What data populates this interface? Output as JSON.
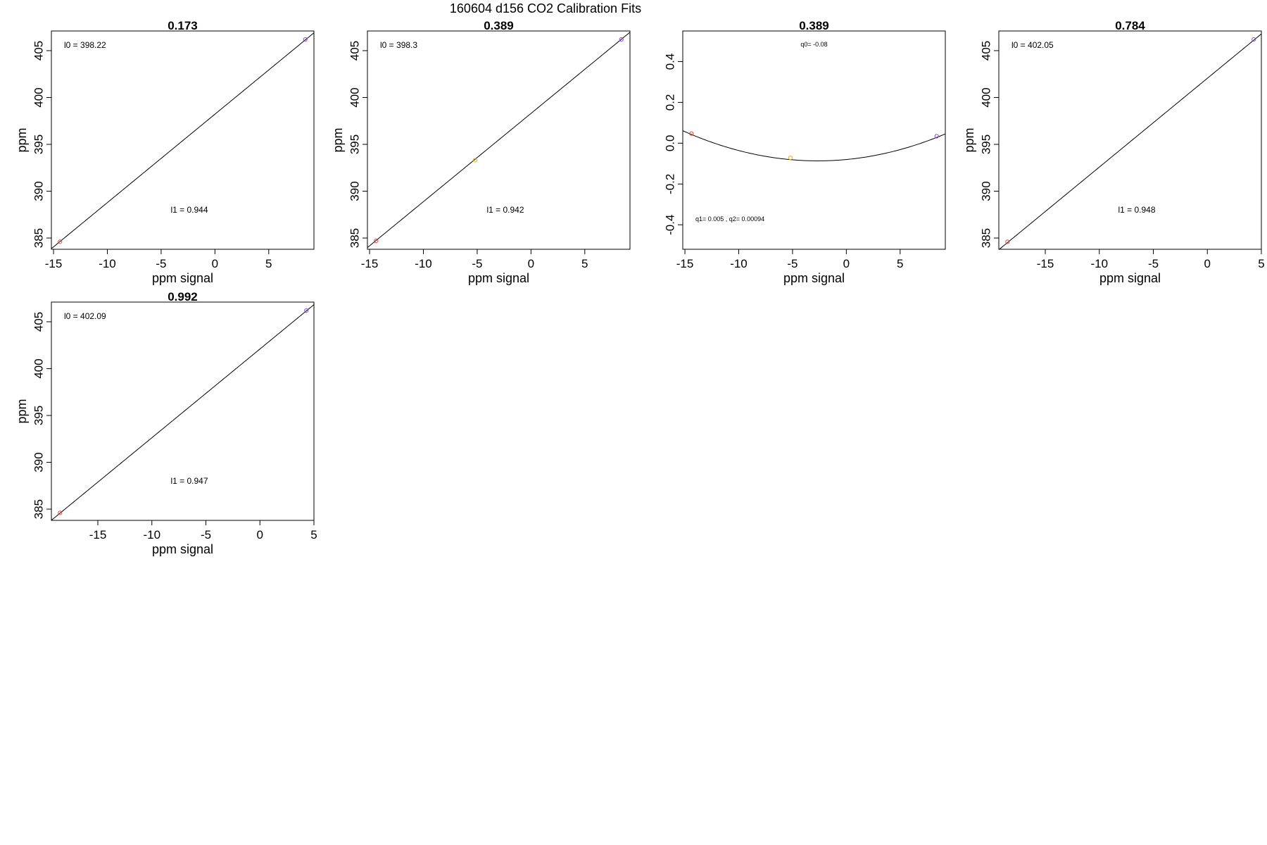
{
  "figure_title": "160604   d156   CO2 Calibration Fits",
  "chart_data": [
    {
      "type": "scatter",
      "title": "0.173",
      "xlabel": "ppm signal",
      "ylabel": "ppm",
      "xlim": [
        -15.2,
        9.2
      ],
      "ylim": [
        383.8,
        407.1
      ],
      "xticks": [
        -15,
        -10,
        -5,
        0,
        5
      ],
      "yticks": [
        385,
        390,
        395,
        400,
        405
      ],
      "points": [
        {
          "x": -14.4,
          "y": 384.6,
          "color": "#e34a33"
        },
        {
          "x": 8.4,
          "y": 406.2,
          "color": "#8a4bd6"
        }
      ],
      "fit": {
        "kind": "linear",
        "intercept": 398.22,
        "slope": 0.944
      },
      "annotations": [
        {
          "text": "l0 =  398.22",
          "pos": "top-left"
        },
        {
          "text": "l1 =  0.944",
          "pos": "bottom-center"
        }
      ]
    },
    {
      "type": "scatter",
      "title": "0.389",
      "xlabel": "ppm signal",
      "ylabel": "ppm",
      "xlim": [
        -15.2,
        9.2
      ],
      "ylim": [
        383.8,
        407.1
      ],
      "xticks": [
        -15,
        -10,
        -5,
        0,
        5
      ],
      "yticks": [
        385,
        390,
        395,
        400,
        405
      ],
      "points": [
        {
          "x": -14.4,
          "y": 384.7,
          "color": "#e34a33"
        },
        {
          "x": -5.2,
          "y": 393.3,
          "color": "#e6a817"
        },
        {
          "x": 8.4,
          "y": 406.2,
          "color": "#8a4bd6"
        }
      ],
      "fit": {
        "kind": "linear",
        "intercept": 398.3,
        "slope": 0.942
      },
      "annotations": [
        {
          "text": "l0 =  398.3",
          "pos": "top-left"
        },
        {
          "text": "l1 =  0.942",
          "pos": "bottom-center"
        }
      ]
    },
    {
      "type": "scatter",
      "title": "0.389",
      "xlabel": "ppm signal",
      "ylabel": "",
      "xlim": [
        -15.2,
        9.2
      ],
      "ylim": [
        -0.52,
        0.55
      ],
      "xticks": [
        -15,
        -10,
        -5,
        0,
        5
      ],
      "yticks": [
        -0.4,
        -0.2,
        0.0,
        0.2,
        0.4
      ],
      "ytick_labels": [
        "-0.4",
        "-0.2",
        "0.0",
        "0.2",
        "0.4"
      ],
      "points": [
        {
          "x": -14.4,
          "y": 0.047,
          "color": "#e34a33"
        },
        {
          "x": -5.2,
          "y": -0.072,
          "color": "#e6a817"
        },
        {
          "x": 8.4,
          "y": 0.034,
          "color": "#8a4bd6"
        }
      ],
      "fit": {
        "kind": "quadratic",
        "q0": -0.08,
        "q1": 0.005,
        "q2": 0.00094
      },
      "annotations": [
        {
          "text": "q0= -0.08",
          "pos": "top-center"
        },
        {
          "text": "q1= 0.005 , q2= 0.00094",
          "pos": "bottom-left"
        }
      ]
    },
    {
      "type": "scatter",
      "title": "0.784",
      "xlabel": "ppm signal",
      "ylabel": "ppm",
      "xlim": [
        -19.3,
        5.0
      ],
      "ylim": [
        383.8,
        407.1
      ],
      "xticks": [
        -15,
        -10,
        -5,
        0,
        5
      ],
      "yticks": [
        385,
        390,
        395,
        400,
        405
      ],
      "points": [
        {
          "x": -18.5,
          "y": 384.6,
          "color": "#e34a33"
        },
        {
          "x": 4.3,
          "y": 406.2,
          "color": "#8a4bd6"
        }
      ],
      "fit": {
        "kind": "linear",
        "intercept": 402.05,
        "slope": 0.948
      },
      "annotations": [
        {
          "text": "l0 =  402.05",
          "pos": "top-left"
        },
        {
          "text": "l1 =  0.948",
          "pos": "bottom-center"
        }
      ]
    },
    {
      "type": "scatter",
      "title": "0.992",
      "xlabel": "ppm signal",
      "ylabel": "ppm",
      "xlim": [
        -19.3,
        5.0
      ],
      "ylim": [
        383.8,
        407.1
      ],
      "xticks": [
        -15,
        -10,
        -5,
        0,
        5
      ],
      "yticks": [
        385,
        390,
        395,
        400,
        405
      ],
      "points": [
        {
          "x": -18.5,
          "y": 384.6,
          "color": "#e34a33"
        },
        {
          "x": 4.3,
          "y": 406.2,
          "color": "#8a4bd6"
        }
      ],
      "fit": {
        "kind": "linear",
        "intercept": 402.09,
        "slope": 0.947
      },
      "annotations": [
        {
          "text": "l0 =  402.09",
          "pos": "top-left"
        },
        {
          "text": "l1 =  0.947",
          "pos": "bottom-center"
        }
      ]
    }
  ]
}
